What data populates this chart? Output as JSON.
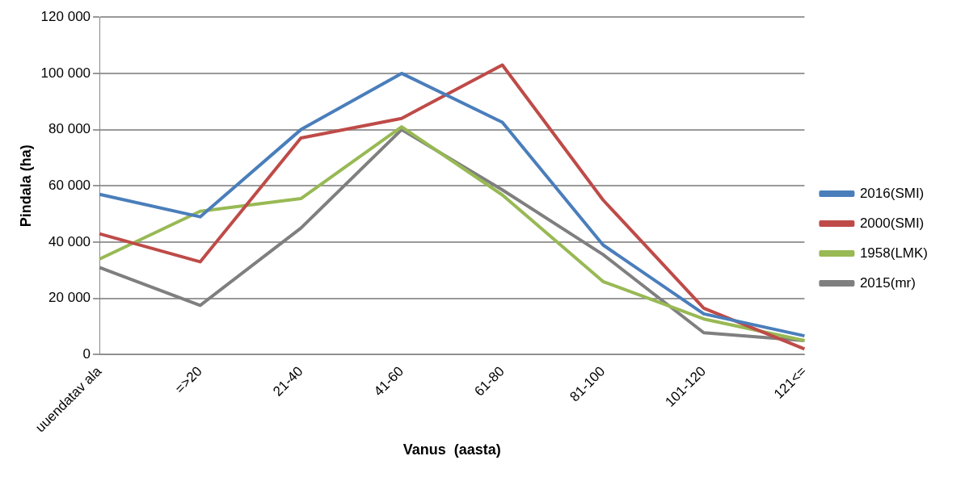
{
  "chart_data": {
    "type": "line",
    "xlabel": "Vanus  (aasta)",
    "ylabel": "Pindala (ha)",
    "categories": [
      "uuendatav ala",
      "=>20",
      "21-40",
      "41-60",
      "61-80",
      "81-100",
      "101-120",
      "121<="
    ],
    "series": [
      {
        "name": "2016(SMI)",
        "color": "#4a7ebb",
        "values": [
          57000,
          49000,
          80000,
          100000,
          82600,
          39000,
          14500,
          6700
        ]
      },
      {
        "name": "2000(SMI)",
        "color": "#be4b48",
        "values": [
          43000,
          33000,
          77000,
          84000,
          103000,
          55000,
          16500,
          2000
        ]
      },
      {
        "name": "1958(LMK)",
        "color": "#98b954",
        "values": [
          34000,
          51000,
          55500,
          81000,
          56800,
          26000,
          12700,
          5000
        ]
      },
      {
        "name": "2015(mr)",
        "color": "#7f7f7f",
        "values": [
          31000,
          17500,
          45000,
          80000,
          58600,
          35600,
          7800,
          5000
        ]
      }
    ],
    "ylim": [
      0,
      120000
    ],
    "yticks": [
      0,
      20000,
      40000,
      60000,
      80000,
      100000,
      120000
    ],
    "grid": "y",
    "legend": "right",
    "marker": "none",
    "line_style": "solid"
  }
}
